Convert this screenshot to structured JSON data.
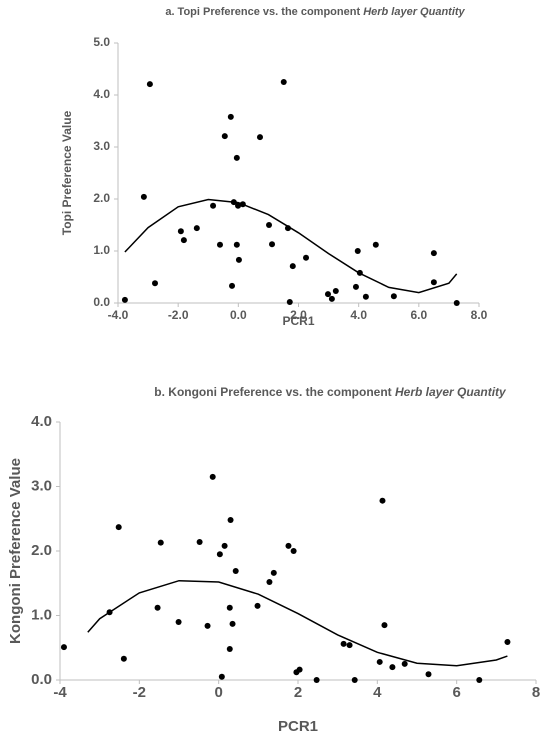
{
  "chart_data": [
    {
      "type": "scatter",
      "title": "a. Topi Preference vs. the component",
      "title_emphasis": "Herb layer Quantity",
      "x_label": "PCR1",
      "y_label": "Topi Preference Value",
      "color": "#000000",
      "x": [
        -3.77,
        -3.14,
        -2.94,
        -2.77,
        -1.91,
        -1.81,
        -1.38,
        -0.84,
        -0.61,
        -0.45,
        -0.25,
        -0.21,
        -0.15,
        -0.05,
        -0.05,
        0.02,
        -0.01,
        0.15,
        0.72,
        1.02,
        1.12,
        1.51,
        1.65,
        1.71,
        1.81,
        2.25,
        2.98,
        3.11,
        3.24,
        3.91,
        3.97,
        4.04,
        4.24,
        4.57,
        5.17,
        6.5,
        6.5,
        7.26
      ],
      "values": [
        0.06,
        2.04,
        4.21,
        0.38,
        1.38,
        1.21,
        1.44,
        1.87,
        1.12,
        3.21,
        3.58,
        0.33,
        1.94,
        1.12,
        2.79,
        0.83,
        1.87,
        1.9,
        3.19,
        1.5,
        1.13,
        4.25,
        1.44,
        0.02,
        0.71,
        0.87,
        0.17,
        0.08,
        0.23,
        0.31,
        1.0,
        0.58,
        0.12,
        1.12,
        0.13,
        0.4,
        0.96,
        0.0
      ],
      "trendline": {
        "x": [
          -3.77,
          -3,
          -2,
          -1,
          0,
          1,
          2,
          3,
          4,
          5,
          6,
          7,
          7.26
        ],
        "values": [
          0.98,
          1.45,
          1.85,
          1.99,
          1.93,
          1.7,
          1.35,
          0.95,
          0.58,
          0.3,
          0.2,
          0.38,
          0.56
        ]
      },
      "xlim": [
        -4,
        8
      ],
      "xticks": [
        {
          "value": -4,
          "label": "-4.0"
        },
        {
          "value": -2,
          "label": "-2.0"
        },
        {
          "value": 0,
          "label": "0.0"
        },
        {
          "value": 2,
          "label": "2.0"
        },
        {
          "value": 4,
          "label": "4.0"
        },
        {
          "value": 6,
          "label": "6.0"
        },
        {
          "value": 8,
          "label": "8.0"
        }
      ],
      "ylim": [
        0,
        5
      ],
      "yticks": [
        {
          "value": 0,
          "label": "0.0"
        },
        {
          "value": 1,
          "label": "1.0"
        },
        {
          "value": 2,
          "label": "2.0"
        },
        {
          "value": 3,
          "label": "3.0"
        },
        {
          "value": 4,
          "label": "4.0"
        },
        {
          "value": 5,
          "label": "5.0"
        }
      ],
      "grid": false
    },
    {
      "type": "scatter",
      "title": "b. Kongoni Preference vs.  the component",
      "title_emphasis": "Herb layer Quantity",
      "x_label": "PCR1",
      "y_label": "Kongoni Preference Value",
      "color": "#000000",
      "x": [
        -3.9,
        -2.75,
        -2.52,
        -2.39,
        -1.54,
        -1.46,
        -1.01,
        -0.48,
        -0.28,
        -0.15,
        0.03,
        0.08,
        0.15,
        0.28,
        0.28,
        0.3,
        0.35,
        0.43,
        0.98,
        1.28,
        1.39,
        1.76,
        1.89,
        1.96,
        2.04,
        2.47,
        3.15,
        3.3,
        3.43,
        4.06,
        4.13,
        4.18,
        4.38,
        4.69,
        5.29,
        6.57,
        7.28
      ],
      "values": [
        0.51,
        1.05,
        2.37,
        0.33,
        1.12,
        2.13,
        0.9,
        2.14,
        0.84,
        3.15,
        1.95,
        0.05,
        2.08,
        1.12,
        0.48,
        2.48,
        0.87,
        1.69,
        1.15,
        1.52,
        1.66,
        2.08,
        2.0,
        0.12,
        0.16,
        0.0,
        0.56,
        0.54,
        0.0,
        0.28,
        2.78,
        0.85,
        0.2,
        0.25,
        0.09,
        0.0,
        0.59
      ],
      "trendline": {
        "x": [
          -3.3,
          -3,
          -2,
          -1,
          0,
          1,
          2,
          3,
          4,
          5,
          6,
          7,
          7.28
        ],
        "values": [
          0.74,
          0.95,
          1.35,
          1.54,
          1.52,
          1.33,
          1.03,
          0.7,
          0.43,
          0.26,
          0.22,
          0.31,
          0.37
        ]
      },
      "xlim": [
        -4,
        8
      ],
      "xticks": [
        -4,
        -2,
        0,
        2,
        4,
        6,
        8
      ],
      "ylim": [
        0,
        4
      ],
      "yticks": [
        {
          "value": 0,
          "label": "0.0"
        },
        {
          "value": 1,
          "label": "1.0"
        },
        {
          "value": 2,
          "label": "2.0"
        },
        {
          "value": 3,
          "label": "3.0"
        },
        {
          "value": 4,
          "label": "4.0"
        }
      ],
      "grid": false
    }
  ]
}
